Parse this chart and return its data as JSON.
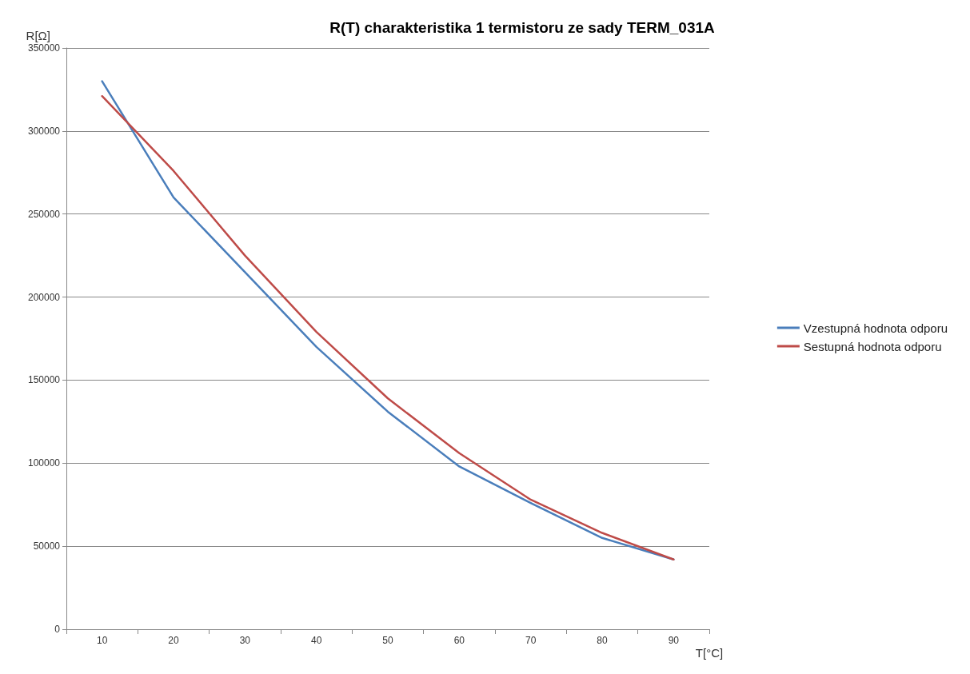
{
  "chart_data": {
    "type": "line",
    "title": "R(T) charakteristika 1 termistoru ze sady TERM_031A",
    "xlabel": "T[°C]",
    "ylabel": "R[Ω]",
    "categories": [
      "10",
      "20",
      "30",
      "40",
      "50",
      "60",
      "70",
      "80",
      "90"
    ],
    "series": [
      {
        "name": "Vzestupná hodnota odporu",
        "color": "#4a7ebb",
        "values": [
          330000,
          260000,
          215000,
          170000,
          131000,
          98000,
          76000,
          55000,
          42000
        ]
      },
      {
        "name": "Sestupná hodnota odporu",
        "color": "#be4b48",
        "values": [
          321000,
          276000,
          225000,
          179000,
          139000,
          106000,
          78000,
          58000,
          42000
        ]
      }
    ],
    "ylim": [
      0,
      350000
    ],
    "yticks": [
      0,
      50000,
      100000,
      150000,
      200000,
      250000,
      300000,
      350000
    ],
    "grid": "y",
    "legend": "right",
    "marker": "none",
    "line_style": "solid"
  }
}
